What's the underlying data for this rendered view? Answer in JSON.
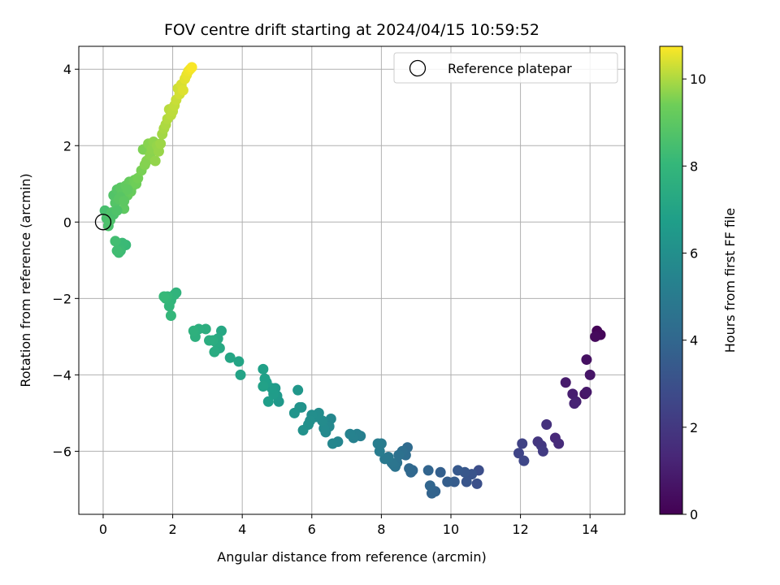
{
  "chart_data": {
    "type": "scatter",
    "title": "FOV centre drift starting at 2024/04/15 10:59:52",
    "xlabel": "Angular distance from reference (arcmin)",
    "ylabel": "Rotation from reference (arcmin)",
    "xlim": [
      -0.7,
      15.0
    ],
    "ylim": [
      -7.65,
      4.6
    ],
    "xticks": [
      0,
      2,
      4,
      6,
      8,
      10,
      12,
      14
    ],
    "yticks": [
      -6,
      -4,
      -2,
      0,
      2,
      4
    ],
    "grid": true,
    "legend": {
      "location": "top-right",
      "entries": [
        "Reference platepar"
      ]
    },
    "reference_point": {
      "x": 0,
      "y": 0
    },
    "colorbar": {
      "label": "Hours from first FF file",
      "colormap": "viridis",
      "range": [
        0,
        10.75
      ],
      "ticks": [
        0,
        2,
        4,
        6,
        8,
        10
      ]
    },
    "series": [
      {
        "x": [
          14.2,
          14.3,
          14.25,
          14.15,
          13.9,
          13.85,
          14.0,
          13.3,
          13.5,
          13.6,
          13.55,
          13.9
        ],
        "y": [
          -2.85,
          -2.95,
          -2.95,
          -3.0,
          -3.6,
          -4.5,
          -4.0,
          -4.2,
          -4.5,
          -4.7,
          -4.75,
          -4.45
        ],
        "c": [
          0.1,
          0.15,
          0.2,
          0.3,
          0.5,
          0.6,
          0.7,
          0.9,
          1.0,
          1.1,
          1.2,
          0.8
        ]
      },
      {
        "x": [
          13.0,
          13.1,
          12.75,
          12.5,
          12.6,
          12.65,
          12.05,
          11.95,
          12.1
        ],
        "y": [
          -5.65,
          -5.8,
          -5.3,
          -5.75,
          -5.85,
          -6.0,
          -5.8,
          -6.05,
          -6.25
        ],
        "c": [
          1.4,
          1.5,
          1.7,
          1.9,
          2.0,
          2.1,
          2.4,
          2.5,
          2.6
        ]
      },
      {
        "x": [
          10.8,
          10.75,
          10.6,
          10.45,
          10.4,
          10.2,
          10.1,
          9.9,
          9.7,
          9.55,
          9.45,
          9.35,
          9.4
        ],
        "y": [
          -6.5,
          -6.85,
          -6.6,
          -6.8,
          -6.55,
          -6.5,
          -6.8,
          -6.8,
          -6.55,
          -7.05,
          -7.1,
          -6.5,
          -6.9
        ],
        "c": [
          2.9,
          3.0,
          3.1,
          3.2,
          3.3,
          3.4,
          3.5,
          3.6,
          3.7,
          3.8,
          3.85,
          3.9,
          3.95
        ]
      },
      {
        "x": [
          8.9,
          8.85,
          8.8,
          8.75,
          8.7,
          8.6,
          8.5,
          8.45,
          8.4,
          8.35,
          8.3,
          8.2,
          8.1,
          8.0,
          7.9,
          7.95
        ],
        "y": [
          -6.5,
          -6.55,
          -6.45,
          -5.9,
          -6.1,
          -6.0,
          -6.1,
          -6.3,
          -6.4,
          -6.35,
          -6.3,
          -6.15,
          -6.2,
          -5.8,
          -5.8,
          -6.0
        ],
        "c": [
          4.0,
          4.05,
          4.1,
          4.2,
          4.3,
          4.4,
          4.5,
          4.55,
          4.6,
          4.65,
          4.7,
          4.8,
          4.9,
          5.0,
          5.1,
          5.05
        ]
      },
      {
        "x": [
          7.4,
          7.3,
          7.2,
          7.1,
          6.75,
          6.6,
          6.55,
          6.5,
          6.4,
          6.35,
          6.3,
          6.2,
          6.1,
          6.0,
          5.95,
          5.9,
          5.75,
          5.7,
          5.65,
          5.5
        ],
        "y": [
          -5.6,
          -5.55,
          -5.65,
          -5.55,
          -5.75,
          -5.8,
          -5.15,
          -5.35,
          -5.5,
          -5.4,
          -5.2,
          -5.0,
          -5.1,
          -5.05,
          -5.2,
          -5.3,
          -5.45,
          -4.85,
          -4.85,
          -5.0
        ],
        "c": [
          5.2,
          5.25,
          5.3,
          5.35,
          5.5,
          5.55,
          5.6,
          5.65,
          5.7,
          5.75,
          5.8,
          5.85,
          5.9,
          5.95,
          6.0,
          6.05,
          6.1,
          6.15,
          6.2,
          6.25
        ]
      },
      {
        "x": [
          5.6,
          5.05,
          5.0,
          4.95,
          4.9,
          4.85,
          4.75,
          4.7,
          4.65,
          4.6,
          4.6
        ],
        "y": [
          -4.4,
          -4.7,
          -4.55,
          -4.35,
          -4.5,
          -4.35,
          -4.7,
          -4.2,
          -4.1,
          -3.85,
          -4.3
        ],
        "c": [
          6.4,
          6.45,
          6.5,
          6.55,
          6.6,
          6.65,
          6.7,
          6.75,
          6.8,
          6.85,
          6.9
        ]
      },
      {
        "x": [
          3.95,
          3.9,
          3.65,
          3.4,
          3.35,
          3.3,
          3.25,
          3.2,
          3.15,
          3.05,
          2.95,
          2.75,
          2.65,
          2.6
        ],
        "y": [
          -4.0,
          -3.65,
          -3.55,
          -2.85,
          -3.3,
          -3.05,
          -3.15,
          -3.4,
          -3.1,
          -3.1,
          -2.8,
          -2.8,
          -3.0,
          -2.85
        ],
        "c": [
          7.0,
          7.05,
          7.1,
          7.2,
          7.25,
          7.3,
          7.35,
          7.4,
          7.45,
          7.5,
          7.55,
          7.6,
          7.65,
          7.7
        ]
      },
      {
        "x": [
          2.1,
          2.05,
          1.95,
          1.9,
          1.85,
          1.8,
          1.75,
          1.95
        ],
        "y": [
          -1.85,
          -1.9,
          -2.05,
          -2.2,
          -1.95,
          -2.0,
          -1.95,
          -2.45
        ],
        "c": [
          7.8,
          7.85,
          7.9,
          7.95,
          8.0,
          8.05,
          8.1,
          8.0
        ]
      },
      {
        "x": [
          0.65,
          0.55,
          0.5,
          0.45,
          0.4,
          0.35
        ],
        "y": [
          -0.6,
          -0.55,
          -0.75,
          -0.8,
          -0.75,
          -0.5
        ],
        "c": [
          8.15,
          8.2,
          8.25,
          8.3,
          8.35,
          8.4
        ]
      },
      {
        "x": [
          0.05,
          0.1,
          0.15,
          0.2,
          0.25,
          0.3,
          0.35,
          0.4,
          0.45,
          0.5,
          0.55,
          0.6,
          0.65,
          0.7,
          0.75,
          0.8,
          0.85,
          0.9,
          0.95,
          1.0,
          0.3,
          0.4,
          0.5,
          0.6,
          0.7
        ],
        "y": [
          0.3,
          0.1,
          -0.1,
          0.05,
          0.25,
          0.7,
          0.5,
          0.85,
          0.6,
          0.9,
          0.75,
          0.35,
          0.95,
          0.7,
          1.05,
          0.8,
          0.95,
          1.1,
          1.0,
          1.15,
          0.2,
          0.3,
          0.65,
          0.55,
          0.85
        ],
        "c": [
          8.5,
          8.55,
          8.6,
          8.65,
          8.7,
          8.75,
          8.8,
          8.85,
          8.9,
          8.95,
          9.0,
          9.05,
          9.1,
          9.15,
          9.2,
          9.25,
          9.3,
          9.35,
          9.4,
          9.45,
          8.6,
          8.7,
          8.9,
          9.0,
          9.1
        ]
      },
      {
        "x": [
          1.1,
          1.15,
          1.2,
          1.25,
          1.3,
          1.35,
          1.4,
          1.45,
          1.5,
          1.55,
          1.6,
          1.65,
          1.7,
          1.75,
          1.8,
          1.85,
          1.9,
          1.95,
          2.0,
          2.05,
          2.1,
          2.15,
          2.2,
          2.25,
          2.3,
          2.35,
          2.4,
          2.45,
          2.5,
          2.55
        ],
        "y": [
          1.35,
          1.9,
          1.5,
          1.6,
          2.05,
          1.75,
          1.9,
          2.1,
          1.6,
          2.0,
          1.85,
          2.05,
          2.3,
          2.45,
          2.55,
          2.7,
          2.95,
          2.8,
          2.9,
          3.05,
          3.2,
          3.5,
          3.35,
          3.6,
          3.45,
          3.75,
          3.85,
          3.95,
          4.0,
          4.05
        ],
        "c": [
          9.5,
          9.55,
          9.6,
          9.62,
          9.65,
          9.67,
          9.7,
          9.72,
          9.75,
          9.77,
          9.8,
          9.85,
          9.9,
          9.95,
          10.0,
          10.05,
          10.1,
          10.12,
          10.15,
          10.2,
          10.25,
          10.3,
          10.35,
          10.4,
          10.45,
          10.5,
          10.55,
          10.6,
          10.65,
          10.7
        ]
      }
    ]
  }
}
